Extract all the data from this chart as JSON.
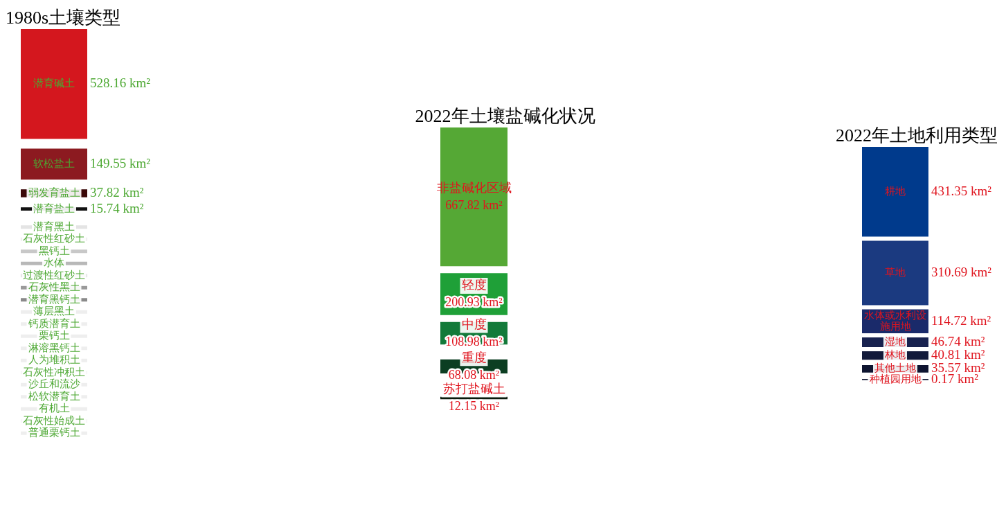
{
  "chart_data": [
    {
      "type": "other",
      "title": "1980s土壤类型",
      "categories": [
        "潜育碱土",
        "软松盐土",
        "弱发育盐土",
        "潜育盐土",
        "潜育黑土",
        "石灰性红砂土",
        "黑钙土",
        "水体",
        "过渡性红砂土",
        "石灰性黑土",
        "潜育黑钙土",
        "薄层黑土",
        "钙质潜育土",
        "栗钙土",
        "淋溶黑钙土",
        "人为堆积土",
        "石灰性冲积土",
        "沙丘和流沙",
        "松软潜育土",
        "有机土",
        "石灰性始成土",
        "普通栗钙土"
      ],
      "values": [
        528.16,
        149.55,
        37.82,
        15.74,
        null,
        null,
        null,
        null,
        null,
        null,
        null,
        null,
        null,
        null,
        null,
        null,
        null,
        null,
        null,
        null,
        null,
        null
      ],
      "value_labels": [
        "528.16 km²",
        "149.55 km²",
        "37.82 km²",
        "15.74 km²",
        null,
        null,
        null,
        null,
        null,
        null,
        null,
        null,
        null,
        null,
        null,
        null,
        null,
        null,
        null,
        null,
        null,
        null
      ],
      "colors": [
        "#d4171e",
        "#8c1a20",
        "#3a0808",
        "#111111",
        "#e4e4e4",
        "#dedede",
        "#c8c8c8",
        "#b8b8b8",
        "#cfcfcf",
        "#9a9a9a",
        "#8a8a8a",
        "#eeeeee",
        "#eeeeee",
        "#eeeeee",
        "#eeeeee",
        "#eeeeee",
        "#eeeeee",
        "#eeeeee",
        "#eeeeee",
        "#eeeeee",
        "#eeeeee",
        "#eeeeee"
      ]
    },
    {
      "type": "other",
      "title": "2022年土壤盐碱化状况",
      "categories": [
        "非盐碱化区域",
        "轻度",
        "中度",
        "重度",
        "苏打盐碱土"
      ],
      "values": [
        667.82,
        200.93,
        108.98,
        68.08,
        12.15
      ],
      "value_labels": [
        "667.82 km²",
        "200.93 km²",
        "108.98 km²",
        "68.08 km²",
        "12.15 km²"
      ],
      "colors": [
        "#55a835",
        "#1fa038",
        "#137a3a",
        "#0c3e22",
        "#0a1a0c"
      ]
    },
    {
      "type": "other",
      "title": "2022年土地利用类型",
      "categories": [
        "耕地",
        "草地",
        "水体或水利设施用地",
        "湿地",
        "林地",
        "其他土地",
        "种植园用地"
      ],
      "values": [
        431.35,
        310.69,
        114.72,
        46.74,
        40.81,
        35.57,
        0.17
      ],
      "value_labels": [
        "431.35 km²",
        "310.69 km²",
        "114.72 km²",
        "46.74 km²",
        "40.81 km²",
        "35.57 km²",
        "0.17 km²"
      ],
      "colors": [
        "#003a8c",
        "#1b3a80",
        "#1a2a6a",
        "#18224f",
        "#121a3a",
        "#0e1430",
        "#0e1430"
      ]
    }
  ]
}
